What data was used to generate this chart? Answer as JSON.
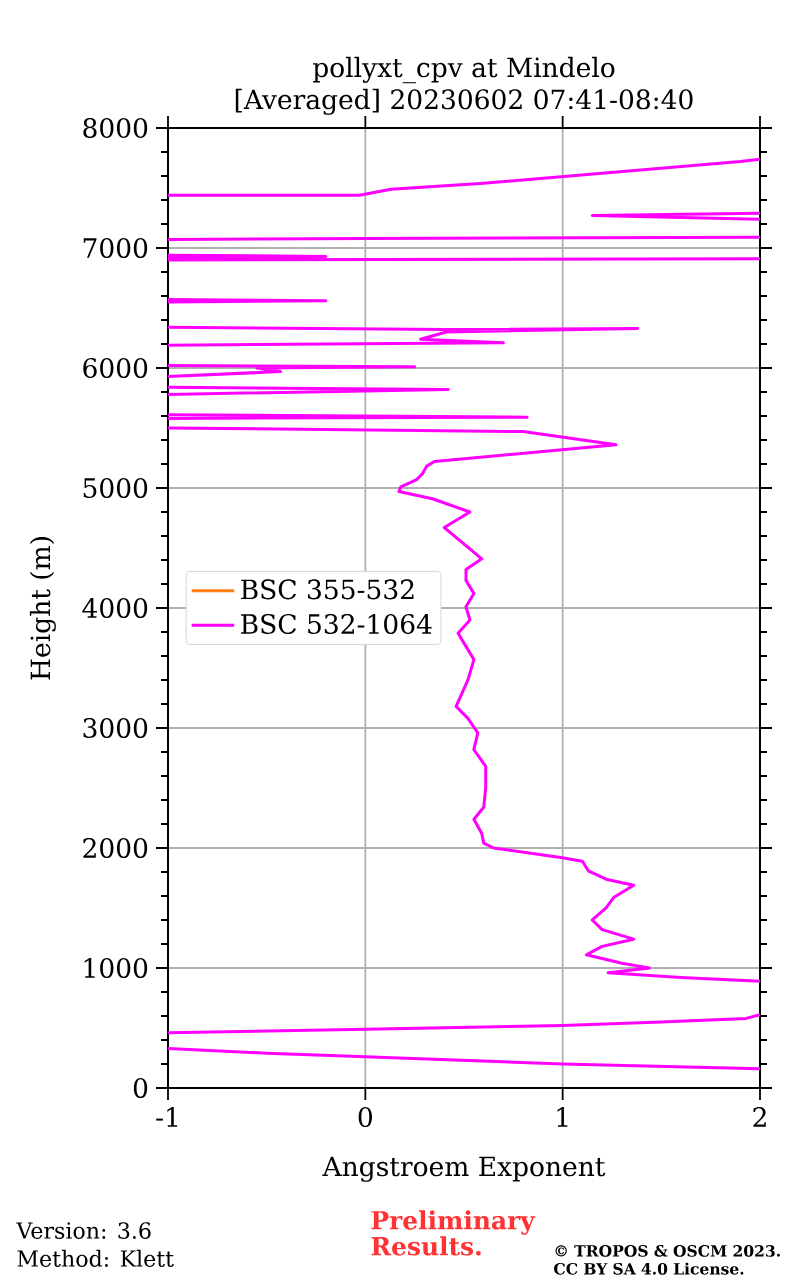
{
  "chart_data": {
    "type": "line",
    "title": "pollyxt_cpv at Mindelo",
    "subtitle": "[Averaged] 20230602 07:41-08:40",
    "xlabel": "Angstroem Exponent",
    "ylabel": "Height (m)",
    "xlim": [
      -1,
      2
    ],
    "xticks": [
      -1,
      0,
      1,
      2
    ],
    "ylim": [
      0,
      8000
    ],
    "yticks": [
      0,
      1000,
      2000,
      3000,
      4000,
      5000,
      6000,
      7000,
      8000
    ],
    "grid": true,
    "legend": "left",
    "series": [
      {
        "name": "BSC 355-532",
        "color": "#ff7f0e"
      },
      {
        "name": "BSC 532-1064",
        "color": "#ff00ff",
        "x": [
          2,
          1,
          0,
          -0.5,
          -1,
          null,
          -1,
          0,
          1,
          1.5,
          1.93,
          2,
          null,
          2,
          1.6,
          1.23,
          1.44,
          1.3,
          1.12,
          1.2,
          1.36,
          1.2,
          1.15,
          1.22,
          1.26,
          1.36,
          1.22,
          1.13,
          1.1,
          0.99,
          0.65,
          0.6,
          0.59,
          0.55,
          0.6,
          0.61,
          0.61,
          0.55,
          0.57,
          0.52,
          0.46,
          0.52,
          0.55,
          0.51,
          0.47,
          0.53,
          0.51,
          0.55,
          0.51,
          0.51,
          0.59,
          0.51,
          0.4,
          0.53,
          0.34,
          0.17,
          0.18,
          0.26,
          0.29,
          0.31,
          0.35,
          1.27,
          0.8,
          -1,
          null,
          -1,
          0.82,
          -1,
          null,
          -1,
          0.42,
          -1,
          null,
          -1,
          -0.43,
          -0.55,
          0.25,
          -1,
          null,
          -1,
          0.7,
          0.28,
          0.41,
          1.38,
          0.41,
          -1,
          null,
          -1,
          -0.2,
          -1,
          null,
          -1,
          2,
          null,
          -1,
          -0.2,
          -1,
          null,
          -1,
          0,
          2,
          null,
          2,
          1.15,
          2,
          null,
          -1,
          -0.03,
          0.13,
          0.6,
          1.9,
          2
        ],
        "values": [
          160,
          200,
          260,
          290,
          330,
          null,
          460,
          490,
          520,
          550,
          580,
          610,
          null,
          890,
          920,
          960,
          1000,
          1040,
          1110,
          1180,
          1240,
          1320,
          1400,
          1500,
          1590,
          1690,
          1740,
          1810,
          1890,
          1920,
          2000,
          2040,
          2120,
          2240,
          2340,
          2500,
          2680,
          2820,
          2960,
          3080,
          3180,
          3400,
          3570,
          3680,
          3790,
          3900,
          4010,
          4120,
          4230,
          4320,
          4410,
          4520,
          4670,
          4800,
          4910,
          4970,
          5010,
          5070,
          5120,
          5180,
          5220,
          5360,
          5470,
          5500,
          null,
          5580,
          5590,
          5610,
          null,
          5780,
          5820,
          5840,
          null,
          5930,
          5970,
          6000,
          6010,
          6020,
          null,
          6190,
          6210,
          6240,
          6300,
          6330,
          6320,
          6340,
          null,
          6550,
          6560,
          6570,
          null,
          6900,
          6910,
          null,
          6920,
          6930,
          6940,
          null,
          7070,
          7080,
          7090,
          null,
          7240,
          7270,
          7290,
          null,
          7440,
          7440,
          7490,
          7540,
          7720,
          7740
        ]
      }
    ],
    "annotations": [
      "Version: 3.6",
      "Method: Klett",
      "Preliminary Results.",
      "© TROPOS & OSCM 2023. CC BY SA 4.0 License."
    ]
  }
}
